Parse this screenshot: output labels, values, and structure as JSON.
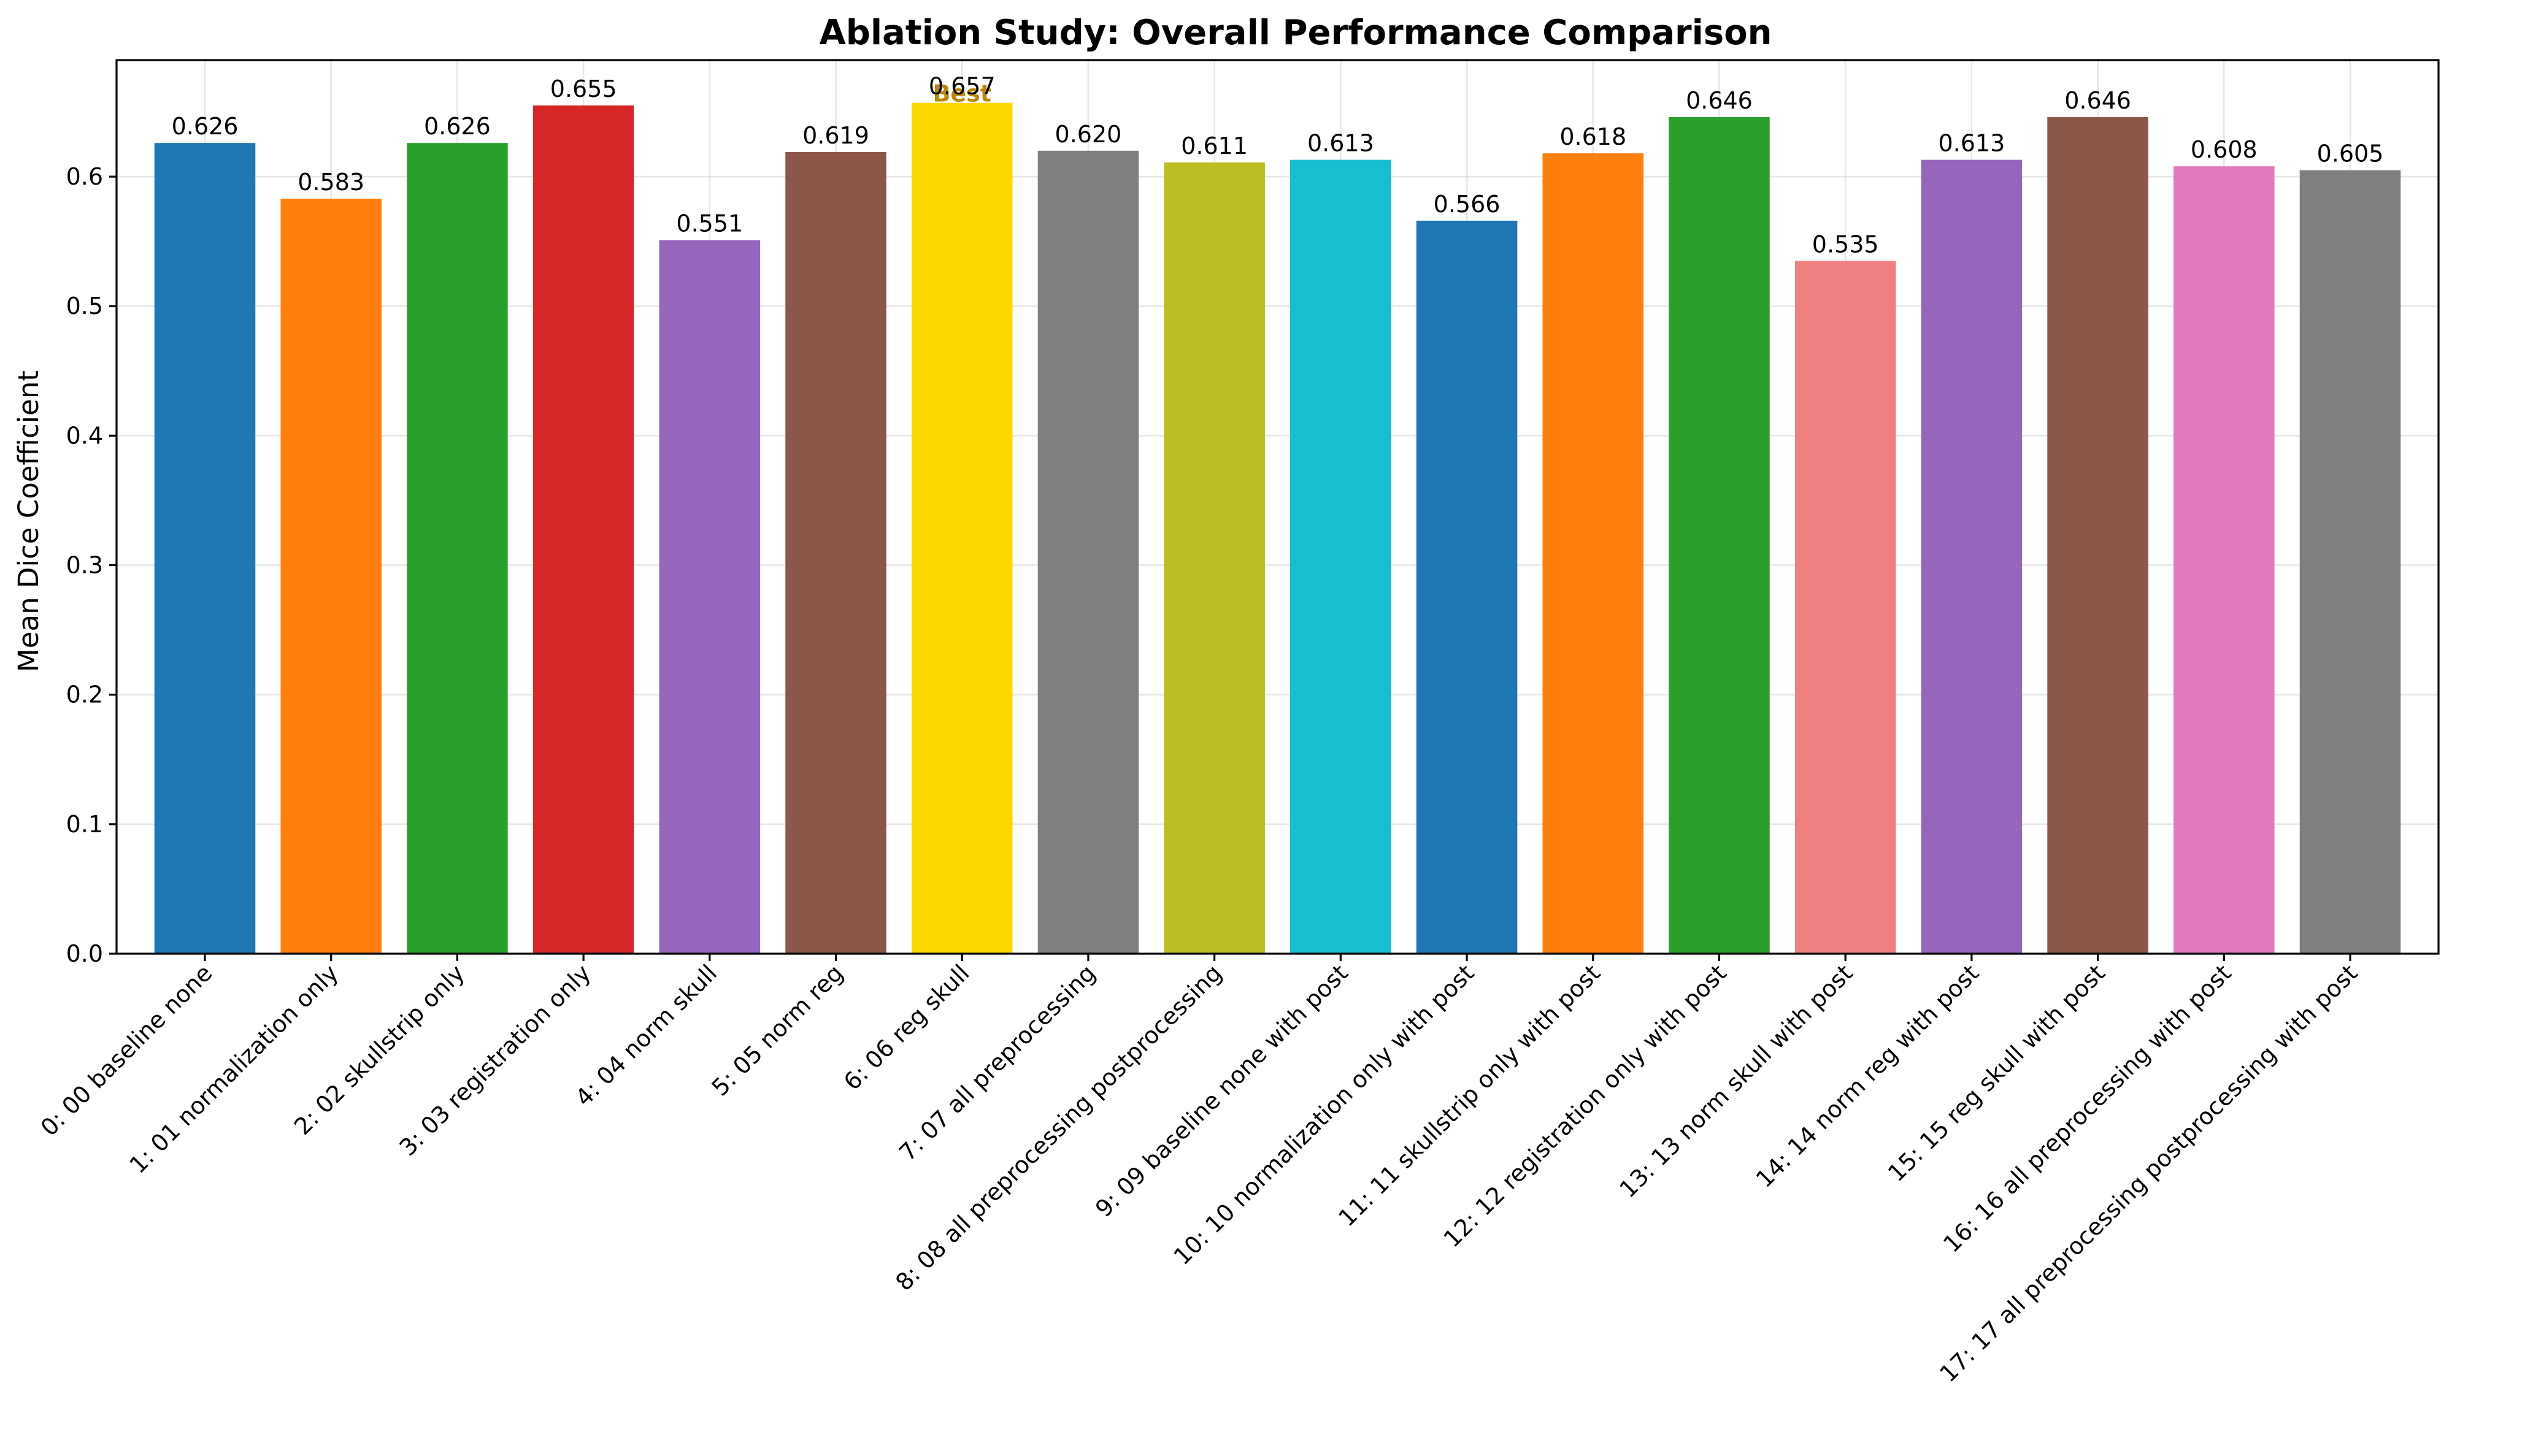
{
  "chart_data": {
    "type": "bar",
    "title": "Ablation Study: Overall Performance Comparison",
    "xlabel": "",
    "ylabel": "Mean Dice Coefficient",
    "ylim": [
      0,
      0.69
    ],
    "yticks": [
      0.0,
      0.1,
      0.2,
      0.3,
      0.4,
      0.5,
      0.6
    ],
    "ytick_labels": [
      "0.0",
      "0.1",
      "0.2",
      "0.3",
      "0.4",
      "0.5",
      "0.6"
    ],
    "grid": true,
    "categories": [
      "0: 00 baseline none",
      "1: 01 normalization only",
      "2: 02 skullstrip only",
      "3: 03 registration only",
      "4: 04 norm skull",
      "5: 05 norm reg",
      "6: 06 reg skull",
      "7: 07 all preprocessing",
      "8: 08 all preprocessing postprocessing",
      "9: 09 baseline none with post",
      "10: 10 normalization only with post",
      "11: 11 skullstrip only with post",
      "12: 12 registration only with post",
      "13: 13 norm skull with post",
      "14: 14 norm reg with post",
      "15: 15 reg skull with post",
      "16: 16 all preprocessing with post",
      "17: 17 all preprocessing postprocessing with post"
    ],
    "values": [
      0.626,
      0.583,
      0.626,
      0.655,
      0.551,
      0.619,
      0.657,
      0.62,
      0.611,
      0.613,
      0.566,
      0.618,
      0.646,
      0.535,
      0.613,
      0.646,
      0.608,
      0.605
    ],
    "value_labels": [
      "0.626",
      "0.583",
      "0.626",
      "0.655",
      "0.551",
      "0.619",
      "0.657",
      "0.620",
      "0.611",
      "0.613",
      "0.566",
      "0.618",
      "0.646",
      "0.535",
      "0.613",
      "0.646",
      "0.608",
      "0.605"
    ],
    "colors": [
      "#1f77b4",
      "#ff7f0e",
      "#2ca02c",
      "#d62728",
      "#9467bd",
      "#8c564b",
      "#ffd700",
      "#7f7f7f",
      "#bcbd22",
      "#17becf",
      "#1f77b4",
      "#ff7f0e",
      "#2ca02c",
      "#f08080",
      "#9467bd",
      "#8c564b",
      "#e377c2",
      "#7f7f7f"
    ],
    "highlight": {
      "index": 6,
      "label": "Best",
      "color": "#b8860b"
    }
  }
}
